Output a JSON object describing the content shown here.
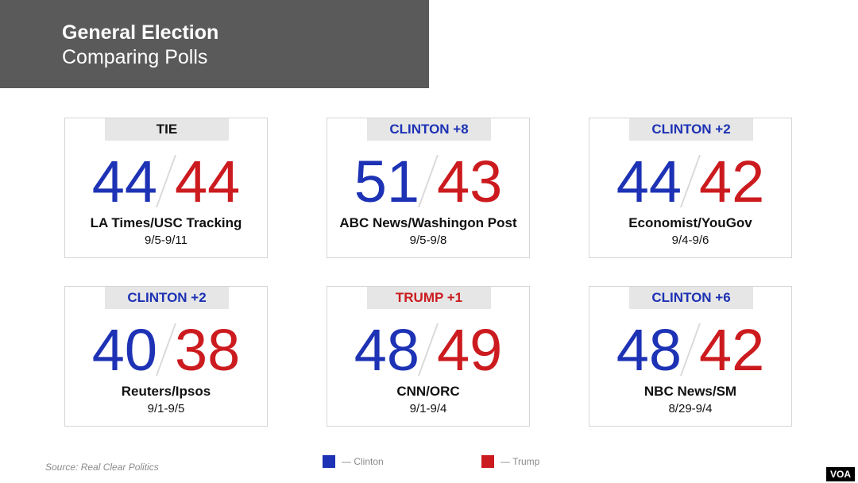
{
  "header": {
    "title": "General Election",
    "subtitle": "Comparing Polls"
  },
  "colors": {
    "clinton": "#1d32b4",
    "trump": "#cc1b1f",
    "tie": "#111111"
  },
  "chart_data": {
    "type": "table",
    "title": "General Election",
    "subtitle": "Comparing Polls",
    "columns": [
      "badge",
      "Clinton",
      "Trump",
      "pollster",
      "dates"
    ],
    "polls": [
      {
        "badge": "TIE",
        "leader": "tie",
        "clinton": 44,
        "trump": 44,
        "pollster": "LA Times/USC Tracking",
        "dates": "9/5-9/11"
      },
      {
        "badge": "CLINTON +8",
        "leader": "clinton",
        "clinton": 51,
        "trump": 43,
        "pollster": "ABC News/Washingon Post",
        "dates": "9/5-9/8"
      },
      {
        "badge": "CLINTON +2",
        "leader": "clinton",
        "clinton": 44,
        "trump": 42,
        "pollster": "Economist/YouGov",
        "dates": "9/4-9/6"
      },
      {
        "badge": "CLINTON +2",
        "leader": "clinton",
        "clinton": 40,
        "trump": 38,
        "pollster": "Reuters/Ipsos",
        "dates": "9/1-9/5"
      },
      {
        "badge": "TRUMP +1",
        "leader": "trump",
        "clinton": 48,
        "trump": 49,
        "pollster": "CNN/ORC",
        "dates": "9/1-9/4"
      },
      {
        "badge": "CLINTON +6",
        "leader": "clinton",
        "clinton": 48,
        "trump": 42,
        "pollster": "NBC News/SM",
        "dates": "8/29-9/4"
      }
    ],
    "legend": [
      {
        "label": "— Clinton",
        "color": "#1d32b4"
      },
      {
        "label": "— Trump",
        "color": "#cc1b1f"
      }
    ]
  },
  "footer": {
    "source": "Source: Real Clear Politics",
    "watermark": "VOA"
  }
}
